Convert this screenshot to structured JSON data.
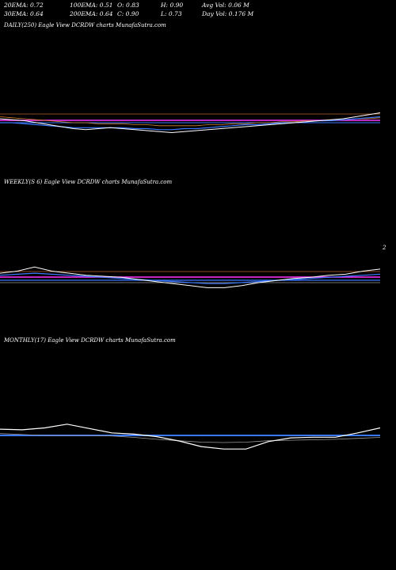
{
  "header": {
    "ema20": "20EMA: 0.72",
    "ema30": "30EMA: 0.64",
    "ema100": "100EMA: 0.51",
    "ema200": "200EMA: 0.64",
    "open": "O: 0.83",
    "close": "C: 0.90",
    "high": "H: 0.90",
    "low": "L: 0.73",
    "avg_vol": "Avg Vol: 0.06  M",
    "day_vol": "Day Vol: 0.176  M"
  },
  "panels": {
    "daily": "DAILY(250) Eagle  View  DCRDW charts MunafaSutra.com",
    "weekly": "WEEKLY(S            6) Eagle  View  DCRDW charts MunafaSutra.com",
    "monthly": "MONTHLY(17) Eagle  View  DCRDW charts MunafaSutra.com"
  },
  "weekly_tick": "2",
  "colors": {
    "price": "#ffffff",
    "ema_blue": "#3a78ff",
    "ema_magenta": "#ff33ff",
    "ema_orange": "#d0802a",
    "ema_grey": "#9a9a9a",
    "ref_line": "#8b4a1f"
  },
  "chart_data": [
    {
      "type": "line",
      "title": "DAILY(250) Eagle  View  DCRDW charts MunafaSutra.com",
      "series": [
        {
          "values": [
            0.84,
            0.83,
            0.82,
            0.8,
            0.78,
            0.76,
            0.74,
            0.73,
            0.74,
            0.75,
            0.74,
            0.73,
            0.72,
            0.71,
            0.7,
            0.71,
            0.72,
            0.73,
            0.74,
            0.75,
            0.76,
            0.77,
            0.78,
            0.79,
            0.8,
            0.81,
            0.82,
            0.83,
            0.84,
            0.86,
            0.88,
            0.9
          ]
        },
        {
          "values": [
            0.8,
            0.8,
            0.79,
            0.78,
            0.77,
            0.76,
            0.75,
            0.75,
            0.75,
            0.75,
            0.75,
            0.74,
            0.74,
            0.73,
            0.73,
            0.74,
            0.74,
            0.75,
            0.76,
            0.77,
            0.78,
            0.78,
            0.79,
            0.8,
            0.8,
            0.81,
            0.82,
            0.82,
            0.83,
            0.84,
            0.85,
            0.86
          ]
        },
        {
          "values": [
            0.86,
            0.85,
            0.84,
            0.83,
            0.82,
            0.81,
            0.8,
            0.8,
            0.79,
            0.79,
            0.79,
            0.78,
            0.78,
            0.77,
            0.77,
            0.77,
            0.77,
            0.78,
            0.78,
            0.79,
            0.79,
            0.8,
            0.8,
            0.81,
            0.81,
            0.82,
            0.82,
            0.83,
            0.83,
            0.84,
            0.84,
            0.85
          ]
        }
      ]
    },
    {
      "type": "line",
      "title": "WEEKLY(S            6) Eagle  View  DCRDW charts MunafaSutra.com",
      "series": [
        {
          "values": [
            0.86,
            0.88,
            0.92,
            0.88,
            0.86,
            0.84,
            0.83,
            0.82,
            0.8,
            0.78,
            0.76,
            0.74,
            0.72,
            0.72,
            0.74,
            0.77,
            0.79,
            0.81,
            0.82,
            0.84,
            0.85,
            0.88,
            0.9
          ]
        },
        {
          "values": [
            0.84,
            0.85,
            0.86,
            0.85,
            0.84,
            0.83,
            0.82,
            0.81,
            0.8,
            0.79,
            0.78,
            0.77,
            0.76,
            0.76,
            0.77,
            0.78,
            0.79,
            0.8,
            0.81,
            0.82,
            0.83,
            0.84,
            0.85
          ]
        }
      ]
    },
    {
      "type": "line",
      "title": "MONTHLY(17) Eagle  View  DCRDW charts MunafaSutra.com",
      "series": [
        {
          "values": [
            0.88,
            0.87,
            0.9,
            0.96,
            0.89,
            0.82,
            0.8,
            0.76,
            0.69,
            0.6,
            0.56,
            0.56,
            0.68,
            0.74,
            0.75,
            0.75,
            0.82,
            0.9
          ]
        },
        {
          "values": [
            0.84,
            0.82,
            0.8,
            0.8,
            0.8,
            0.79,
            0.76,
            0.72,
            0.69,
            0.66,
            0.65,
            0.66,
            0.69,
            0.7,
            0.71,
            0.72,
            0.74,
            0.76
          ]
        }
      ]
    }
  ]
}
